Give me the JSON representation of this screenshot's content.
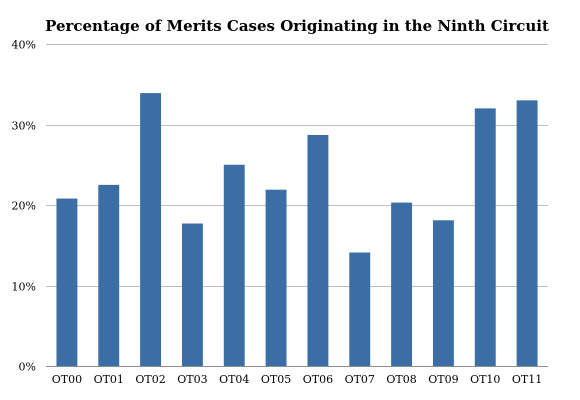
{
  "chart_data": {
    "type": "bar",
    "title": "Percentage of Merits Cases Originating in the Ninth Circuit",
    "xlabel": "",
    "ylabel": "",
    "categories": [
      "OT00",
      "OT01",
      "OT02",
      "OT03",
      "OT04",
      "OT05",
      "OT06",
      "OT07",
      "OT08",
      "OT09",
      "OT10",
      "OT11"
    ],
    "values": [
      20.8,
      22.5,
      33.9,
      17.7,
      25.0,
      21.9,
      28.7,
      14.1,
      20.3,
      18.1,
      32.0,
      33.0
    ],
    "ylim": [
      0,
      40
    ],
    "yticks": [
      0,
      10,
      20,
      30,
      40
    ],
    "ytick_labels": [
      "0%",
      "10%",
      "20%",
      "30%",
      "40%"
    ],
    "grid": true,
    "legend": "none",
    "bar_color": "#3a6ea5"
  }
}
